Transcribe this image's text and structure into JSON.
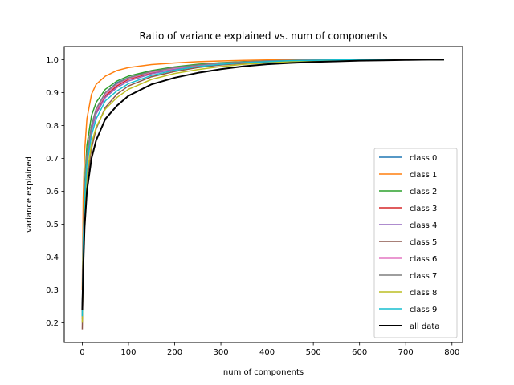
{
  "chart_data": {
    "type": "line",
    "title": "Ratio of variance explained vs. num of components",
    "xlabel": "num of components",
    "ylabel": "variance explained",
    "xlim": [
      -39,
      823
    ],
    "ylim": [
      0.14,
      1.04
    ],
    "xticks": [
      0,
      100,
      200,
      300,
      400,
      500,
      600,
      700,
      800
    ],
    "yticks": [
      0.2,
      0.3,
      0.4,
      0.5,
      0.6,
      0.7,
      0.8,
      0.9,
      1.0
    ],
    "xtick_labels": [
      "0",
      "100",
      "200",
      "300",
      "400",
      "500",
      "600",
      "700",
      "800"
    ],
    "ytick_labels": [
      "0.2",
      "0.3",
      "0.4",
      "0.5",
      "0.6",
      "0.7",
      "0.8",
      "0.9",
      "1.0"
    ],
    "grid": false,
    "legend_position": "lower-right",
    "x": [
      0,
      2,
      5,
      10,
      20,
      30,
      50,
      75,
      100,
      150,
      200,
      250,
      300,
      350,
      400,
      450,
      500,
      550,
      600,
      650,
      700,
      750,
      783
    ],
    "series": [
      {
        "name": "class 0",
        "color": "#1f77b4",
        "values": [
          0.22,
          0.45,
          0.6,
          0.71,
          0.8,
          0.85,
          0.9,
          0.93,
          0.945,
          0.965,
          0.977,
          0.985,
          0.99,
          0.994,
          0.996,
          0.998,
          0.999,
          0.9995,
          1.0,
          1.0,
          1.0,
          1.0,
          1.0
        ]
      },
      {
        "name": "class 1",
        "color": "#ff7f0e",
        "values": [
          0.3,
          0.58,
          0.72,
          0.82,
          0.895,
          0.925,
          0.95,
          0.967,
          0.976,
          0.985,
          0.99,
          0.994,
          0.996,
          0.998,
          0.999,
          0.9995,
          1.0,
          1.0,
          1.0,
          1.0,
          1.0,
          1.0,
          1.0
        ]
      },
      {
        "name": "class 2",
        "color": "#2ca02c",
        "values": [
          0.22,
          0.46,
          0.62,
          0.74,
          0.83,
          0.87,
          0.91,
          0.935,
          0.95,
          0.967,
          0.978,
          0.986,
          0.991,
          0.994,
          0.996,
          0.998,
          0.999,
          0.9995,
          1.0,
          1.0,
          1.0,
          1.0,
          1.0
        ]
      },
      {
        "name": "class 3",
        "color": "#d62728",
        "values": [
          0.22,
          0.44,
          0.59,
          0.7,
          0.79,
          0.84,
          0.89,
          0.92,
          0.94,
          0.96,
          0.973,
          0.982,
          0.988,
          0.992,
          0.995,
          0.997,
          0.998,
          0.999,
          1.0,
          1.0,
          1.0,
          1.0,
          1.0
        ]
      },
      {
        "name": "class 4",
        "color": "#9467bd",
        "values": [
          0.21,
          0.43,
          0.58,
          0.69,
          0.785,
          0.835,
          0.885,
          0.915,
          0.935,
          0.957,
          0.971,
          0.98,
          0.987,
          0.991,
          0.994,
          0.996,
          0.998,
          0.999,
          1.0,
          1.0,
          1.0,
          1.0,
          1.0
        ]
      },
      {
        "name": "class 5",
        "color": "#8c564b",
        "values": [
          0.18,
          0.38,
          0.52,
          0.63,
          0.73,
          0.79,
          0.855,
          0.895,
          0.92,
          0.948,
          0.964,
          0.976,
          0.984,
          0.989,
          0.993,
          0.996,
          0.998,
          0.999,
          1.0,
          1.0,
          1.0,
          1.0,
          1.0
        ]
      },
      {
        "name": "class 6",
        "color": "#e377c2",
        "values": [
          0.22,
          0.45,
          0.6,
          0.71,
          0.8,
          0.845,
          0.895,
          0.925,
          0.943,
          0.962,
          0.974,
          0.983,
          0.989,
          0.993,
          0.996,
          0.998,
          0.999,
          0.9995,
          1.0,
          1.0,
          1.0,
          1.0,
          1.0
        ]
      },
      {
        "name": "class 7",
        "color": "#7f7f7f",
        "values": [
          0.22,
          0.45,
          0.6,
          0.71,
          0.8,
          0.85,
          0.9,
          0.928,
          0.945,
          0.964,
          0.976,
          0.984,
          0.99,
          0.993,
          0.996,
          0.998,
          0.999,
          0.9995,
          1.0,
          1.0,
          1.0,
          1.0,
          1.0
        ]
      },
      {
        "name": "class 8",
        "color": "#bcbd22",
        "values": [
          0.2,
          0.4,
          0.54,
          0.65,
          0.745,
          0.795,
          0.85,
          0.885,
          0.91,
          0.94,
          0.958,
          0.97,
          0.979,
          0.986,
          0.99,
          0.994,
          0.996,
          0.998,
          0.999,
          1.0,
          1.0,
          1.0,
          1.0
        ]
      },
      {
        "name": "class 9",
        "color": "#17becf",
        "values": [
          0.22,
          0.43,
          0.57,
          0.68,
          0.77,
          0.82,
          0.875,
          0.905,
          0.927,
          0.952,
          0.968,
          0.979,
          0.986,
          0.991,
          0.994,
          0.997,
          0.998,
          0.999,
          1.0,
          1.0,
          1.0,
          1.0,
          1.0
        ]
      },
      {
        "name": "all data",
        "color": "#000000",
        "values": [
          0.24,
          0.36,
          0.49,
          0.6,
          0.7,
          0.755,
          0.82,
          0.86,
          0.89,
          0.925,
          0.945,
          0.96,
          0.971,
          0.98,
          0.986,
          0.99,
          0.993,
          0.995,
          0.997,
          0.998,
          0.999,
          1.0,
          1.0
        ]
      }
    ]
  }
}
